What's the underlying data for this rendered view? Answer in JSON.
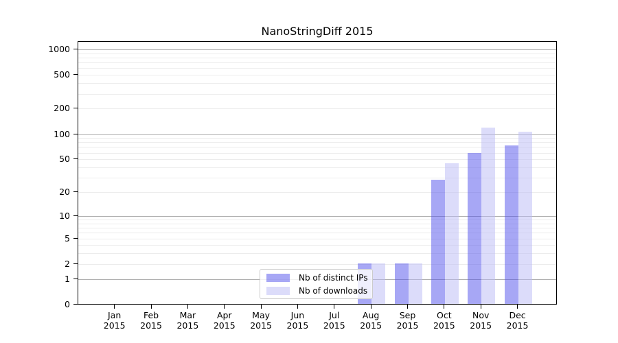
{
  "figure": {
    "title": "NanoStringDiff 2015"
  },
  "chart_data": {
    "type": "bar",
    "title": "NanoStringDiff 2015",
    "months": [
      "Jan",
      "Feb",
      "Mar",
      "Apr",
      "May",
      "Jun",
      "Jul",
      "Aug",
      "Sep",
      "Oct",
      "Nov",
      "Dec"
    ],
    "year": "2015",
    "x_categories": [
      "Jan 2015",
      "Feb 2015",
      "Mar 2015",
      "Apr 2015",
      "May 2015",
      "Jun 2015",
      "Jul 2015",
      "Aug 2015",
      "Sep 2015",
      "Oct 2015",
      "Nov 2015",
      "Dec 2015"
    ],
    "series": [
      {
        "name": "Nb of distinct IPs",
        "color": "#5050EB",
        "alpha": 0.5,
        "values": [
          0,
          0,
          0,
          0,
          0,
          0,
          0,
          2,
          2,
          28,
          59,
          72
        ]
      },
      {
        "name": "Nb of downloads",
        "color": "#B9B9F5",
        "alpha": 0.5,
        "values": [
          0,
          0,
          0,
          0,
          0,
          0,
          0,
          2,
          2,
          44,
          118,
          105
        ]
      }
    ],
    "y_scale": "log1p",
    "y_ticks": [
      0,
      1,
      2,
      5,
      10,
      20,
      50,
      100,
      200,
      500,
      1000
    ],
    "y_major_gridlines": [
      1,
      10,
      100,
      1000
    ],
    "y_minor_gridlines": [
      2,
      3,
      4,
      5,
      6,
      7,
      8,
      9,
      20,
      30,
      40,
      50,
      60,
      70,
      80,
      90,
      200,
      300,
      400,
      500,
      600,
      700,
      800,
      900
    ],
    "y_max": 1250,
    "grid": true,
    "legend": {
      "position": "lower center",
      "items": [
        "Nb of distinct IPs",
        "Nb of downloads"
      ]
    },
    "colors": {
      "major_grid": "#b0b0b0",
      "minor_grid": "#ececec",
      "spine": "#000000",
      "legend_border": "#cccccc"
    }
  }
}
